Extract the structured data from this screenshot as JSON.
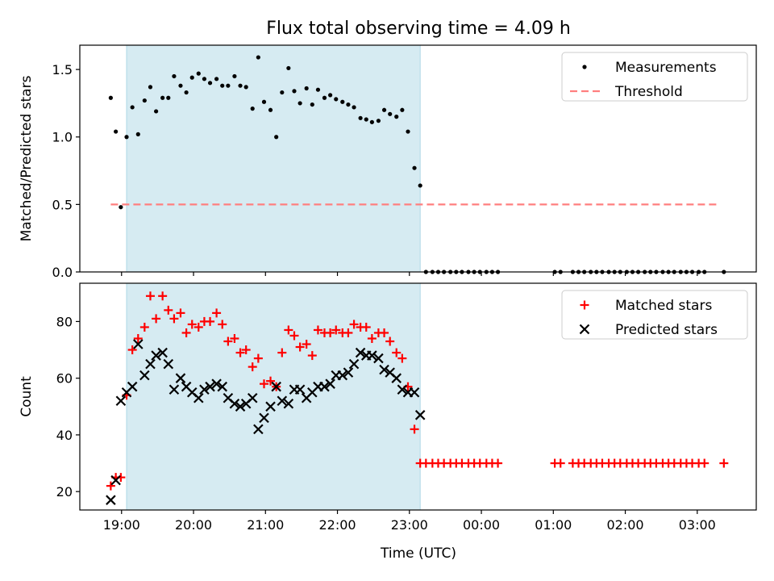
{
  "chart_data": {
    "type": "scatter",
    "title": "Flux total observing time = 4.09 h",
    "xlabel": "Time (UTC)",
    "x_unit": "hours",
    "x_ticks": [
      {
        "value": 19,
        "label": "19:00"
      },
      {
        "value": 20,
        "label": "20:00"
      },
      {
        "value": 21,
        "label": "21:00"
      },
      {
        "value": 22,
        "label": "22:00"
      },
      {
        "value": 23,
        "label": "23:00"
      },
      {
        "value": 24,
        "label": "00:00"
      },
      {
        "value": 25,
        "label": "01:00"
      },
      {
        "value": 26,
        "label": "02:00"
      },
      {
        "value": 27,
        "label": "03:00"
      }
    ],
    "xlim": [
      18.42,
      27.82
    ],
    "observing_window": [
      19.07,
      23.15
    ],
    "window_color": "#add8e6",
    "panels": [
      {
        "ylabel": "Matched/Predicted stars",
        "ylim": [
          0,
          1.68
        ],
        "y_ticks": [
          {
            "value": 0,
            "label": "0.0"
          },
          {
            "value": 0.5,
            "label": "0.5"
          },
          {
            "value": 1.0,
            "label": "1.0"
          },
          {
            "value": 1.5,
            "label": "1.5"
          }
        ],
        "legend_position": "top-right",
        "series": [
          {
            "name": "Measurements",
            "marker": "dot",
            "color": "#000000",
            "x": [
              18.85,
              18.92,
              18.99,
              19.07,
              19.15,
              19.23,
              19.32,
              19.4,
              19.48,
              19.57,
              19.65,
              19.73,
              19.82,
              19.9,
              19.98,
              20.07,
              20.15,
              20.23,
              20.32,
              20.4,
              20.48,
              20.57,
              20.65,
              20.73,
              20.82,
              20.9,
              20.98,
              21.07,
              21.15,
              21.23,
              21.32,
              21.4,
              21.48,
              21.57,
              21.65,
              21.73,
              21.82,
              21.9,
              21.98,
              22.07,
              22.15,
              22.23,
              22.32,
              22.4,
              22.48,
              22.57,
              22.65,
              22.73,
              22.82,
              22.9,
              22.98,
              23.07,
              23.15,
              23.23,
              23.32,
              23.4,
              23.48,
              23.57,
              23.65,
              23.73,
              23.82,
              23.9,
              23.98,
              24.07,
              24.15,
              24.23,
              25.02,
              25.1,
              25.27,
              25.35,
              25.43,
              25.52,
              25.6,
              25.68,
              25.77,
              25.85,
              25.93,
              26.02,
              26.1,
              26.18,
              26.27,
              26.35,
              26.43,
              26.52,
              26.6,
              26.68,
              26.77,
              26.85,
              26.93,
              27.02,
              27.1,
              27.37
            ],
            "y": [
              1.29,
              1.04,
              0.48,
              1.0,
              1.22,
              1.02,
              1.27,
              1.37,
              1.19,
              1.29,
              1.29,
              1.45,
              1.38,
              1.33,
              1.44,
              1.47,
              1.43,
              1.4,
              1.43,
              1.38,
              1.38,
              1.45,
              1.38,
              1.37,
              1.21,
              1.59,
              1.26,
              1.2,
              1.0,
              1.33,
              1.51,
              1.34,
              1.25,
              1.36,
              1.24,
              1.35,
              1.29,
              1.31,
              1.28,
              1.26,
              1.24,
              1.22,
              1.14,
              1.13,
              1.11,
              1.12,
              1.2,
              1.17,
              1.15,
              1.2,
              1.04,
              0.77,
              0.64,
              0,
              0,
              0,
              0,
              0,
              0,
              0,
              0,
              0,
              0,
              0,
              0,
              0,
              0,
              0,
              0,
              0,
              0,
              0,
              0,
              0,
              0,
              0,
              0,
              0,
              0,
              0,
              0,
              0,
              0,
              0,
              0,
              0,
              0,
              0,
              0,
              0,
              0,
              0
            ]
          },
          {
            "name": "Threshold",
            "marker": "dashed-line",
            "color": "#ff7f7f",
            "x": [
              18.85,
              27.3
            ],
            "y": [
              0.5,
              0.5
            ]
          }
        ]
      },
      {
        "ylabel": "Count",
        "ylim": [
          13.5,
          93.5
        ],
        "y_ticks": [
          {
            "value": 20,
            "label": "20"
          },
          {
            "value": 40,
            "label": "40"
          },
          {
            "value": 60,
            "label": "60"
          },
          {
            "value": 80,
            "label": "80"
          }
        ],
        "legend_position": "top-right",
        "series": [
          {
            "name": "Matched stars",
            "marker": "plus",
            "color": "#ff0000",
            "x": [
              18.85,
              18.92,
              18.99,
              19.07,
              19.15,
              19.23,
              19.32,
              19.4,
              19.48,
              19.57,
              19.65,
              19.73,
              19.82,
              19.9,
              19.98,
              20.07,
              20.15,
              20.23,
              20.32,
              20.4,
              20.48,
              20.57,
              20.65,
              20.73,
              20.82,
              20.9,
              20.98,
              21.07,
              21.15,
              21.23,
              21.32,
              21.4,
              21.48,
              21.57,
              21.65,
              21.73,
              21.82,
              21.9,
              21.98,
              22.07,
              22.15,
              22.23,
              22.32,
              22.4,
              22.48,
              22.57,
              22.65,
              22.73,
              22.82,
              22.9,
              22.98,
              23.07,
              23.15,
              23.23,
              23.32,
              23.4,
              23.48,
              23.57,
              23.65,
              23.73,
              23.82,
              23.9,
              23.98,
              24.07,
              24.15,
              24.23,
              25.02,
              25.1,
              25.27,
              25.35,
              25.43,
              25.52,
              25.6,
              25.68,
              25.77,
              25.85,
              25.93,
              26.02,
              26.1,
              26.18,
              26.27,
              26.35,
              26.43,
              26.52,
              26.6,
              26.68,
              26.77,
              26.85,
              26.93,
              27.02,
              27.1,
              27.37
            ],
            "y": [
              22,
              25,
              25,
              54,
              70,
              74,
              78,
              89,
              81,
              89,
              84,
              81,
              83,
              76,
              79,
              78,
              80,
              80,
              83,
              79,
              73,
              74,
              69,
              70,
              64,
              67,
              58,
              59,
              57,
              69,
              77,
              75,
              71,
              72,
              68,
              77,
              76,
              76,
              77,
              76,
              76,
              79,
              78,
              78,
              74,
              76,
              76,
              73,
              69,
              67,
              57,
              42,
              30,
              30,
              30,
              30,
              30,
              30,
              30,
              30,
              30,
              30,
              30,
              30,
              30,
              30,
              30,
              30,
              30,
              30,
              30,
              30,
              30,
              30,
              30,
              30,
              30,
              30,
              30,
              30,
              30,
              30,
              30,
              30,
              30,
              30,
              30,
              30,
              30,
              30,
              30,
              30
            ]
          },
          {
            "name": "Predicted stars",
            "marker": "x",
            "color": "#000000",
            "x": [
              18.85,
              18.92,
              18.99,
              19.07,
              19.15,
              19.23,
              19.32,
              19.4,
              19.48,
              19.57,
              19.65,
              19.73,
              19.82,
              19.9,
              19.98,
              20.07,
              20.15,
              20.23,
              20.32,
              20.4,
              20.48,
              20.57,
              20.65,
              20.73,
              20.82,
              20.9,
              20.98,
              21.07,
              21.15,
              21.23,
              21.32,
              21.4,
              21.48,
              21.57,
              21.65,
              21.73,
              21.82,
              21.9,
              21.98,
              22.07,
              22.15,
              22.23,
              22.32,
              22.4,
              22.48,
              22.57,
              22.65,
              22.73,
              22.82,
              22.9,
              22.98,
              23.07,
              23.15
            ],
            "y": [
              17,
              24,
              52,
              55,
              57,
              72,
              61,
              65,
              68,
              69,
              65,
              56,
              60,
              57,
              55,
              53,
              56,
              57,
              58,
              57,
              53,
              51,
              50,
              51,
              53,
              42,
              46,
              50,
              57,
              52,
              51,
              56,
              56,
              53,
              55,
              57,
              57,
              58,
              61,
              61,
              62,
              65,
              69,
              68,
              68,
              67,
              63,
              62,
              60,
              56,
              55,
              55,
              47
            ]
          }
        ]
      }
    ]
  }
}
